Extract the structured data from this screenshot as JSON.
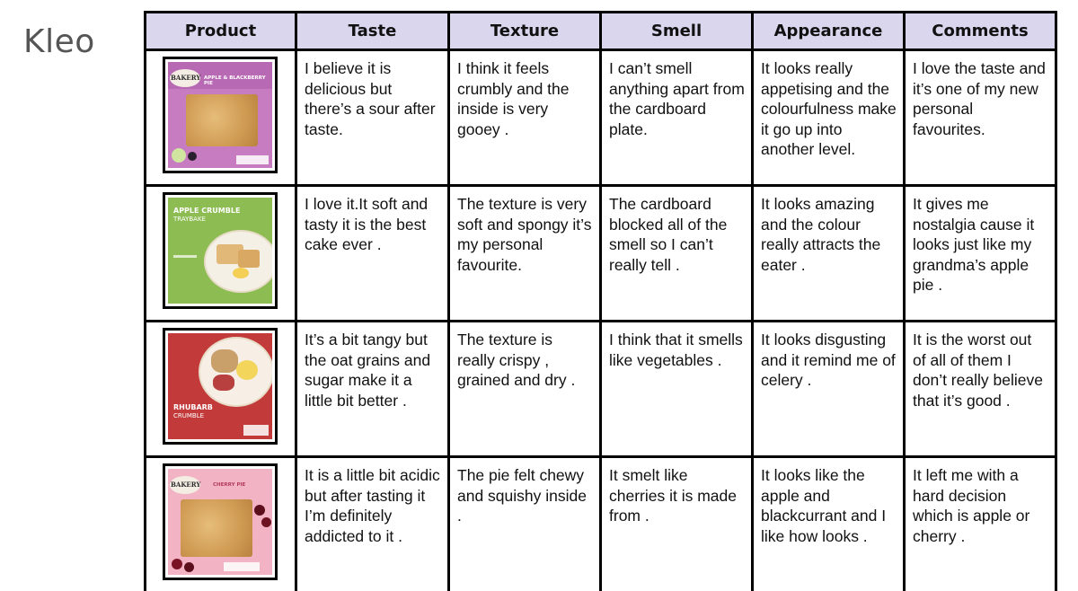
{
  "author": "Kleo",
  "table": {
    "headers": [
      "Product",
      "Taste",
      "Texture",
      "Smell",
      "Appearance",
      "Comments"
    ],
    "rows": [
      {
        "product": {
          "brand": "BAKERY",
          "name": "APPLE & BLACKBERRY PIE",
          "color": "#c77cc2"
        },
        "taste": "I believe it is delicious but there’s a sour after taste.",
        "texture": "I think it feels crumbly and the inside is very gooey .",
        "smell": "I can’t smell anything apart from the cardboard plate.",
        "appearance": "It looks really appetising and the colourfulness make it go up into another level.",
        "comments": "I love the taste and it’s one of my new personal favourites."
      },
      {
        "product": {
          "name": "APPLE CRUMBLE",
          "sub": "TRAYBAKE",
          "color": "#8dbd52"
        },
        "taste": "I love it.It soft and tasty it is the best cake ever .",
        "texture": "The texture is very soft and spongy it’s my personal favourite.",
        "smell": "The cardboard blocked all of the smell so I can’t really tell .",
        "appearance": "It looks amazing and the colour really attracts the eater .",
        "comments": "It gives me nostalgia cause it looks just like my grandma’s apple pie ."
      },
      {
        "product": {
          "name": "RHUBARB",
          "sub": "CRUMBLE",
          "color": "#c23a3a"
        },
        "taste": "It’s a bit tangy but the oat grains and sugar make it a little bit better .",
        "texture": " The texture is really crispy , grained and dry .",
        "smell": "I think that it smells like vegetables .",
        "appearance": "It looks disgusting and it remind me of celery .",
        "comments": "It is the worst out of all of them I don’t really believe that it’s good ."
      },
      {
        "product": {
          "brand": "BAKERY",
          "name": "CHERRY PIE",
          "color": "#f2b3c4"
        },
        "taste": "It is a little bit acidic but after tasting it  I’m definitely addicted to it .",
        "texture": "The pie felt chewy and squishy inside .",
        "smell": "It smelt like cherries it is made from .",
        "appearance": "It looks like the apple and blackcurrant and I like how looks .",
        "comments": "It left me with a hard decision which is apple or cherry ."
      }
    ]
  }
}
